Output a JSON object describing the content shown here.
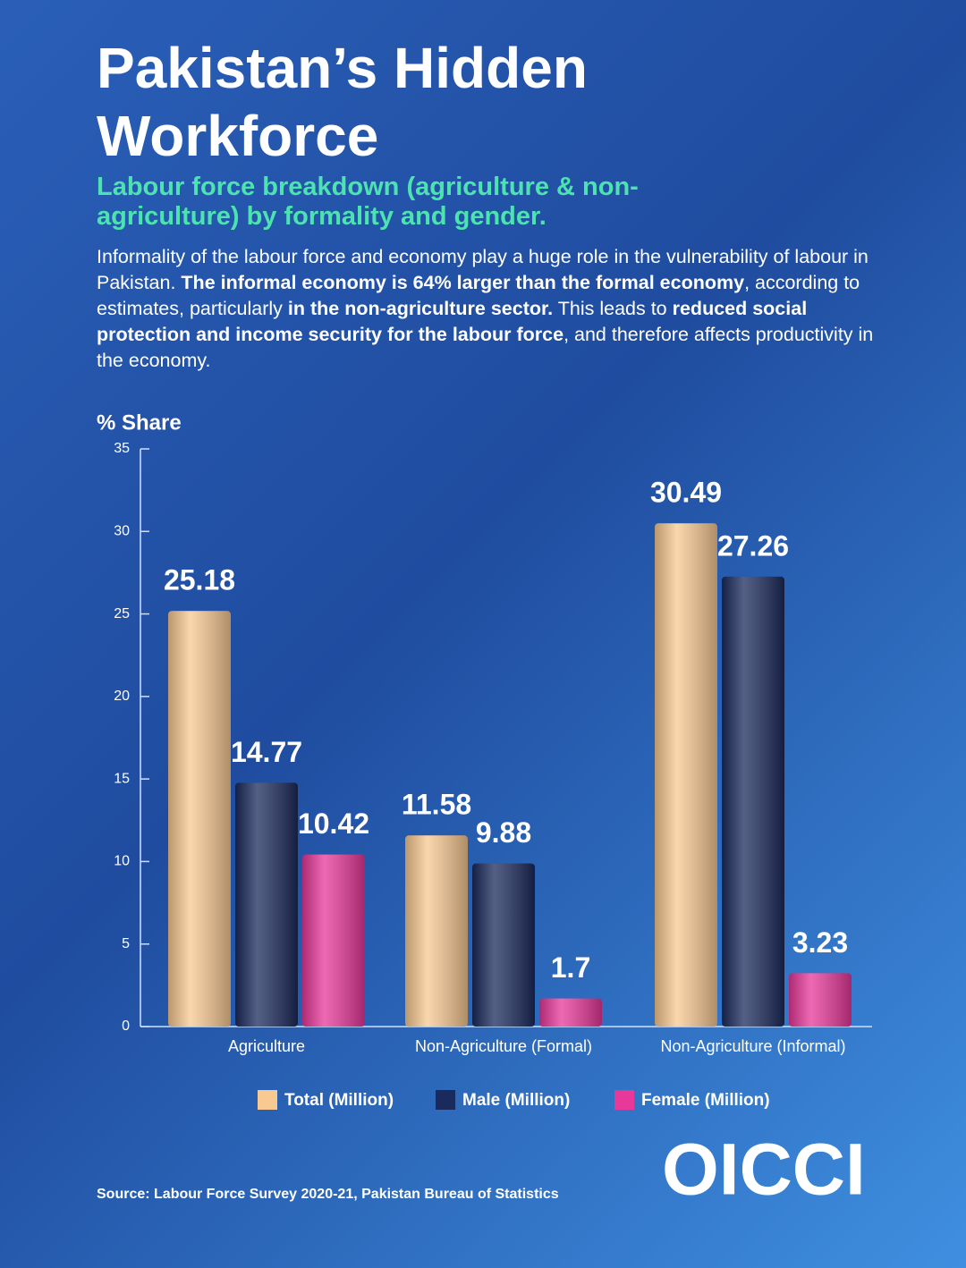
{
  "chart_data": {
    "type": "bar",
    "title": "Pakistan’s Hidden Workforce",
    "subtitle": "Labour force breakdown (agriculture & non-agriculture) by formality and gender.",
    "description": [
      {
        "text": "Informality of the labour force and economy play a huge role in the vulnerability of labour in Pakistan. ",
        "bold": false
      },
      {
        "text": "The informal economy is 64% larger than the formal economy",
        "bold": true
      },
      {
        "text": ", according to estimates, particularly ",
        "bold": false
      },
      {
        "text": "in the non-agriculture sector.",
        "bold": true
      },
      {
        "text": " This leads to ",
        "bold": false
      },
      {
        "text": "reduced social protection and income security for the labour force",
        "bold": true
      },
      {
        "text": ", and therefore affects productivity in the economy.",
        "bold": false
      }
    ],
    "y_label": "% Share",
    "categories": [
      "Agriculture",
      "Non-Agriculture (Formal)",
      "Non-Agriculture (Informal)"
    ],
    "series": [
      {
        "name": "Total (Million)",
        "color": "#f9c992",
        "values": [
          25.18,
          11.58,
          30.49
        ]
      },
      {
        "name": "Male (Million)",
        "color": "#1b2a5c",
        "values": [
          14.77,
          9.88,
          27.26
        ]
      },
      {
        "name": "Female (Million)",
        "color": "#e8389a",
        "values": [
          10.42,
          1.7,
          3.23
        ]
      }
    ],
    "ylim": [
      0,
      35
    ],
    "yticks": [
      0,
      5,
      10,
      15,
      20,
      25,
      30,
      35
    ],
    "source": "Source: Labour Force Survey 2020-21, Pakistan Bureau of Statistics"
  },
  "logo": "OICCI"
}
